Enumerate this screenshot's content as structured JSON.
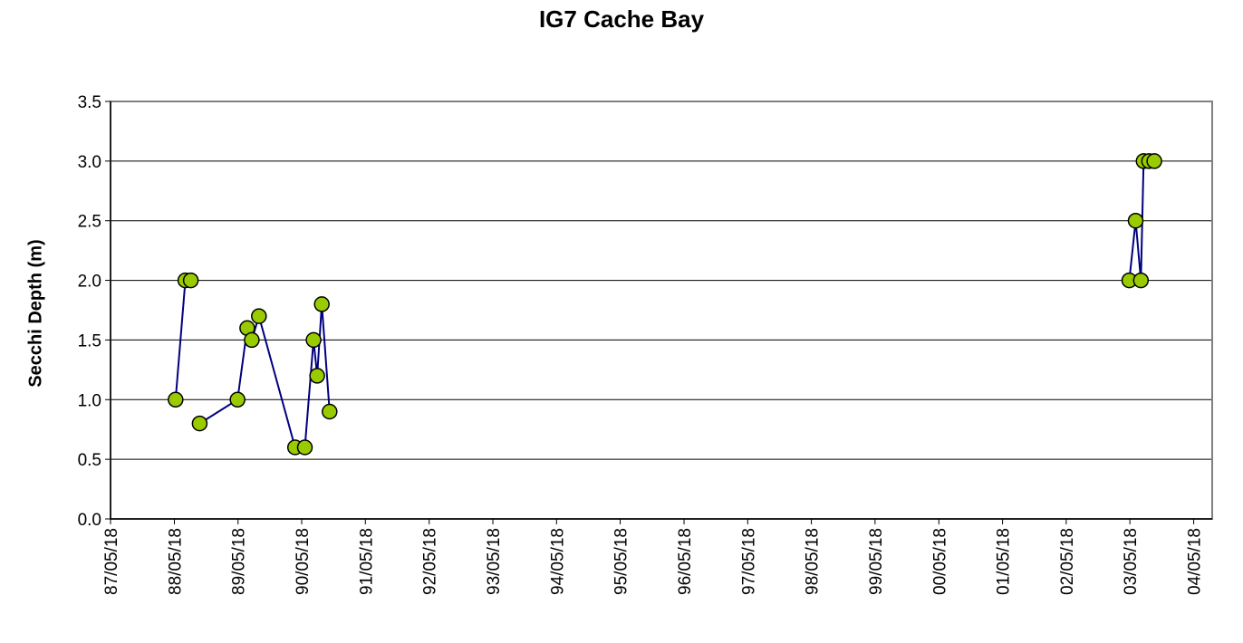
{
  "chart_data": {
    "type": "scatter",
    "title": "IG7 Cache Bay",
    "xlabel": "",
    "ylabel": "Secchi Depth (m)",
    "x_tick_labels": [
      "87/05/18",
      "88/05/18",
      "89/05/18",
      "90/05/18",
      "91/05/18",
      "92/05/18",
      "93/05/18",
      "94/05/18",
      "95/05/18",
      "96/05/18",
      "97/05/18",
      "98/05/18",
      "99/05/18",
      "00/05/18",
      "01/05/18",
      "02/05/18",
      "03/05/18",
      "04/05/18"
    ],
    "y_tick_labels": [
      "0.0",
      "0.5",
      "1.0",
      "1.5",
      "2.0",
      "2.5",
      "3.0",
      "3.5"
    ],
    "xlim": [
      "1987-05-18",
      "2004-09-01"
    ],
    "ylim": [
      0,
      3.5
    ],
    "grid": "horizontal",
    "legend": "none",
    "colors": {
      "marker_fill": "#99cc00",
      "marker_edge": "#000000",
      "line": "#000080"
    },
    "series": [
      {
        "connected": true,
        "points": [
          {
            "x": "1988-05-25",
            "y": 1.0
          },
          {
            "x": "1988-07-20",
            "y": 2.0
          },
          {
            "x": "1988-08-20",
            "y": 2.0
          }
        ]
      },
      {
        "connected": true,
        "points": [
          {
            "x": "1988-10-10",
            "y": 0.8
          },
          {
            "x": "1989-05-15",
            "y": 1.0
          },
          {
            "x": "1989-07-10",
            "y": 1.6
          },
          {
            "x": "1989-08-05",
            "y": 1.5
          },
          {
            "x": "1989-09-15",
            "y": 1.7
          },
          {
            "x": "1990-04-10",
            "y": 0.6
          },
          {
            "x": "1990-06-05",
            "y": 0.6
          },
          {
            "x": "1990-07-25",
            "y": 1.5
          },
          {
            "x": "1990-08-15",
            "y": 1.2
          },
          {
            "x": "1990-09-10",
            "y": 1.8
          },
          {
            "x": "1990-10-25",
            "y": 0.9
          }
        ]
      },
      {
        "connected": true,
        "points": [
          {
            "x": "2003-05-15",
            "y": 2.0
          },
          {
            "x": "2003-06-20",
            "y": 2.5
          },
          {
            "x": "2003-07-20",
            "y": 2.0
          },
          {
            "x": "2003-08-05",
            "y": 3.0
          },
          {
            "x": "2003-09-05",
            "y": 3.0
          },
          {
            "x": "2003-10-05",
            "y": 3.0
          }
        ]
      }
    ]
  }
}
